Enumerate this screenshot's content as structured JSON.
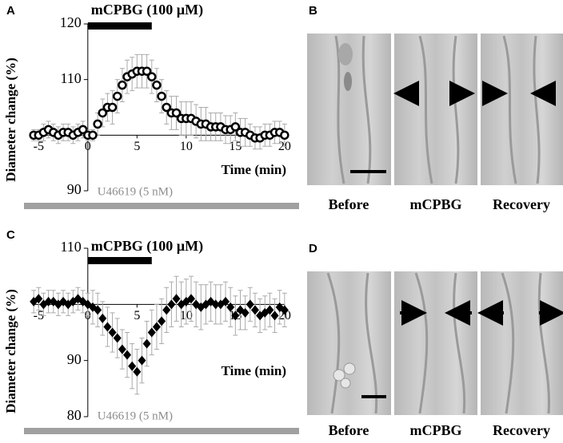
{
  "chart_data": [
    {
      "type": "scatter",
      "panel": "A",
      "y_label": "Diameter change (%)",
      "x_label": "Time (min)",
      "treatment": {
        "label": "mCPBG (100 µM)",
        "x": [
          0,
          6.5
        ]
      },
      "baseline_label": "U46619 (5 nM)",
      "marker": "circle-open",
      "color": "#000000",
      "x": [
        -5.5,
        -5,
        -4.5,
        -4,
        -3.5,
        -3,
        -2.5,
        -2,
        -1.5,
        -1,
        -0.5,
        0,
        0.5,
        1,
        1.5,
        2,
        2.5,
        3,
        3.5,
        4,
        4.5,
        5,
        5.5,
        6,
        6.5,
        7,
        7.5,
        8,
        8.5,
        9,
        9.5,
        10,
        10.5,
        11,
        11.5,
        12,
        12.5,
        13,
        13.5,
        14,
        14.5,
        15,
        15.5,
        16,
        16.5,
        17,
        17.5,
        18,
        18.5,
        19,
        19.5,
        20
      ],
      "values": [
        100,
        100,
        100.5,
        101,
        100.5,
        100,
        100.5,
        100.5,
        100,
        100.5,
        101,
        100,
        100,
        102,
        104,
        105,
        105,
        107,
        109,
        110.5,
        111,
        111.5,
        111.5,
        111.5,
        110.5,
        109,
        107,
        105,
        104,
        104,
        103,
        103,
        103,
        102.5,
        102,
        102,
        101.5,
        101.5,
        101.5,
        101,
        101,
        101.5,
        100.5,
        100.5,
        100,
        99.5,
        99.5,
        100,
        100,
        100.5,
        100.5,
        100
      ],
      "errors": [
        1,
        1,
        1.5,
        1.5,
        1.5,
        1.5,
        1.5,
        1.5,
        1.5,
        1.5,
        1.5,
        1,
        1,
        2,
        2.5,
        2.5,
        3,
        3,
        3,
        3,
        3,
        3,
        3,
        3,
        3,
        3,
        3,
        3,
        3,
        3,
        3,
        3,
        3,
        3,
        3,
        3,
        2.5,
        2.5,
        2.5,
        2.5,
        2.5,
        2.5,
        2.5,
        2.5,
        2,
        2,
        2,
        2,
        2,
        2,
        2,
        2
      ],
      "xlim": [
        -6,
        20.5
      ],
      "ylim": [
        90,
        120
      ],
      "xticks": [
        -5,
        0,
        5,
        10,
        15,
        20
      ],
      "yticks": [
        90,
        110,
        120
      ]
    },
    {
      "type": "scatter",
      "panel": "C",
      "y_label": "Diameter change (%)",
      "x_label": "Time (min)",
      "treatment": {
        "label": "mCPBG (100 µM)",
        "x": [
          0,
          6.5
        ]
      },
      "baseline_label": "U46619 (5 nM)",
      "marker": "diamond",
      "color": "#000000",
      "x": [
        -5.5,
        -5,
        -4.5,
        -4,
        -3.5,
        -3,
        -2.5,
        -2,
        -1.5,
        -1,
        -0.5,
        0,
        0.5,
        1,
        1.5,
        2,
        2.5,
        3,
        3.5,
        4,
        4.5,
        5,
        5.5,
        6,
        6.5,
        7,
        7.5,
        8,
        8.5,
        9,
        9.5,
        10,
        10.5,
        11,
        11.5,
        12,
        12.5,
        13,
        13.5,
        14,
        14.5,
        15,
        15.5,
        16,
        16.5,
        17,
        17.5,
        18,
        18.5,
        19,
        19.5,
        20
      ],
      "values": [
        100.5,
        101,
        100,
        100.5,
        100.5,
        100,
        100.5,
        100,
        100.5,
        101,
        100.5,
        100,
        99.5,
        99,
        97.5,
        96,
        95,
        94,
        92,
        91,
        89,
        88,
        90,
        93,
        95,
        96,
        97,
        99,
        100,
        101,
        100,
        100.5,
        101,
        100,
        99.5,
        100,
        100.5,
        100,
        100,
        100.5,
        99.5,
        98,
        99,
        98.5,
        100,
        99,
        98,
        98.5,
        99,
        98,
        99.5,
        99
      ],
      "errors": [
        2,
        2,
        2,
        2,
        2,
        2,
        2,
        2,
        2,
        2,
        2,
        2,
        3,
        3,
        3,
        3.5,
        3.5,
        3.5,
        3.5,
        4,
        4,
        4,
        4,
        4,
        4,
        4,
        4,
        4,
        4,
        4,
        4,
        4,
        4,
        4,
        4,
        3.5,
        3.5,
        3.5,
        3.5,
        3.5,
        3.5,
        3.5,
        3.5,
        3,
        3,
        3,
        3,
        3,
        3,
        3,
        3,
        3
      ],
      "xlim": [
        -6,
        20.5
      ],
      "ylim": [
        80,
        110
      ],
      "xticks": [
        -5,
        0,
        5,
        10,
        15,
        20
      ],
      "yticks": [
        80,
        90,
        110
      ]
    }
  ],
  "image_panels": [
    {
      "panel": "B",
      "labels": [
        "Before",
        "mCPBG",
        "Recovery"
      ]
    },
    {
      "panel": "D",
      "labels": [
        "Before",
        "mCPBG",
        "Recovery"
      ]
    }
  ]
}
